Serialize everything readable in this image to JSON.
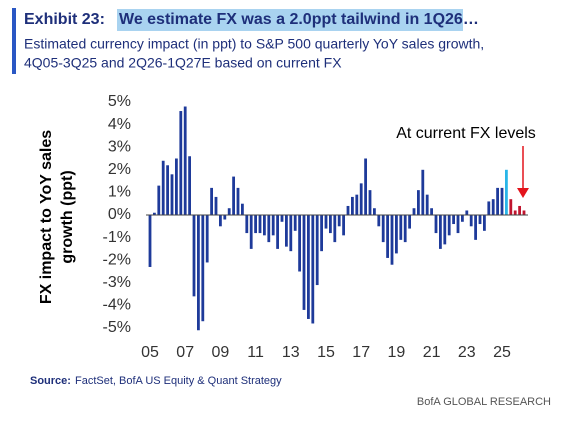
{
  "chart_data": {
    "type": "bar",
    "exhibit": "Exhibit 23:",
    "title": "We estimate FX was a 2.0ppt tailwind in 1Q26…",
    "subtitle": [
      "Estimated currency impact (in ppt) to S&P 500 quarterly YoY sales growth,",
      "4Q05-3Q25 and 2Q26-1Q27E based on current FX"
    ],
    "ylabel": [
      "FX impact to YoY sales",
      "growth (ppt)"
    ],
    "annotation": "At current FX levels",
    "source_label": "Source:",
    "source": "FactSet, BofA US Equity & Quant Strategy",
    "footer": "BofA GLOBAL RESEARCH",
    "categories": [
      "05",
      null,
      null,
      null,
      null,
      null,
      null,
      null,
      "07",
      null,
      null,
      null,
      null,
      null,
      null,
      null,
      "09",
      null,
      null,
      null,
      null,
      null,
      null,
      null,
      "11",
      null,
      null,
      null,
      null,
      null,
      null,
      null,
      "13",
      null,
      null,
      null,
      null,
      null,
      null,
      null,
      "15",
      null,
      null,
      null,
      null,
      null,
      null,
      null,
      "17",
      null,
      null,
      null,
      null,
      null,
      null,
      null,
      "19",
      null,
      null,
      null,
      null,
      null,
      null,
      null,
      "21",
      null,
      null,
      null,
      null,
      null,
      null,
      null,
      "23",
      null,
      null,
      null,
      null,
      null,
      null,
      null,
      "25",
      null,
      null,
      null,
      null,
      null
    ],
    "values": [
      -2.3,
      0.1,
      1.3,
      2.4,
      2.2,
      1.8,
      2.5,
      4.6,
      4.8,
      2.6,
      -3.6,
      -5.1,
      -4.7,
      -2.1,
      1.2,
      0.8,
      -0.5,
      -0.2,
      0.3,
      1.7,
      1.2,
      0.5,
      -0.8,
      -1.5,
      -0.8,
      -0.8,
      -0.9,
      -1.2,
      -0.9,
      -1.5,
      -0.3,
      -1.4,
      -1.6,
      -0.7,
      -2.5,
      -4.2,
      -4.6,
      -4.8,
      -3.1,
      -1.6,
      -0.6,
      -0.8,
      -1.2,
      -0.5,
      -0.9,
      0.4,
      0.8,
      0.9,
      1.4,
      2.5,
      1.1,
      0.3,
      -0.5,
      -1.2,
      -1.9,
      -2.2,
      -1.7,
      -1.1,
      -1.2,
      -0.6,
      0.3,
      1.1,
      2.0,
      0.9,
      0.3,
      -0.8,
      -1.5,
      -1.3,
      -0.9,
      -0.4,
      -0.8,
      -0.3,
      0.2,
      -0.5,
      -1.1,
      -0.4,
      -0.7,
      0.6,
      0.7,
      1.2,
      1.2,
      2.0,
      0.7,
      0.2,
      0.4,
      0.2
    ],
    "colors": [
      "#1e3a9a",
      "#1e3a9a",
      "#1e3a9a",
      "#1e3a9a",
      "#1e3a9a",
      "#1e3a9a",
      "#1e3a9a",
      "#1e3a9a",
      "#1e3a9a",
      "#1e3a9a",
      "#1e3a9a",
      "#1e3a9a",
      "#1e3a9a",
      "#1e3a9a",
      "#1e3a9a",
      "#1e3a9a",
      "#1e3a9a",
      "#1e3a9a",
      "#1e3a9a",
      "#1e3a9a",
      "#1e3a9a",
      "#1e3a9a",
      "#1e3a9a",
      "#1e3a9a",
      "#1e3a9a",
      "#1e3a9a",
      "#1e3a9a",
      "#1e3a9a",
      "#1e3a9a",
      "#1e3a9a",
      "#1e3a9a",
      "#1e3a9a",
      "#1e3a9a",
      "#1e3a9a",
      "#1e3a9a",
      "#1e3a9a",
      "#1e3a9a",
      "#1e3a9a",
      "#1e3a9a",
      "#1e3a9a",
      "#1e3a9a",
      "#1e3a9a",
      "#1e3a9a",
      "#1e3a9a",
      "#1e3a9a",
      "#1e3a9a",
      "#1e3a9a",
      "#1e3a9a",
      "#1e3a9a",
      "#1e3a9a",
      "#1e3a9a",
      "#1e3a9a",
      "#1e3a9a",
      "#1e3a9a",
      "#1e3a9a",
      "#1e3a9a",
      "#1e3a9a",
      "#1e3a9a",
      "#1e3a9a",
      "#1e3a9a",
      "#1e3a9a",
      "#1e3a9a",
      "#1e3a9a",
      "#1e3a9a",
      "#1e3a9a",
      "#1e3a9a",
      "#1e3a9a",
      "#1e3a9a",
      "#1e3a9a",
      "#1e3a9a",
      "#1e3a9a",
      "#1e3a9a",
      "#1e3a9a",
      "#1e3a9a",
      "#1e3a9a",
      "#1e3a9a",
      "#1e3a9a",
      "#1e3a9a",
      "#1e3a9a",
      "#1e3a9a",
      "#1e3a9a",
      "#29b5e8",
      "#c0152f",
      "#c0152f",
      "#c0152f",
      "#c0152f"
    ],
    "ylim": [
      -5,
      5
    ],
    "yticks": [
      {
        "value": 5,
        "label": "5%"
      },
      {
        "value": 4,
        "label": "4%"
      },
      {
        "value": 3,
        "label": "3%"
      },
      {
        "value": 2,
        "label": "2%"
      },
      {
        "value": 1,
        "label": "1%"
      },
      {
        "value": 0,
        "label": "0%"
      },
      {
        "value": -1,
        "label": "-1%"
      },
      {
        "value": -2,
        "label": "-2%"
      },
      {
        "value": -3,
        "label": "-3%"
      },
      {
        "value": -4,
        "label": "-4%"
      },
      {
        "value": -5,
        "label": "-5%"
      }
    ]
  }
}
